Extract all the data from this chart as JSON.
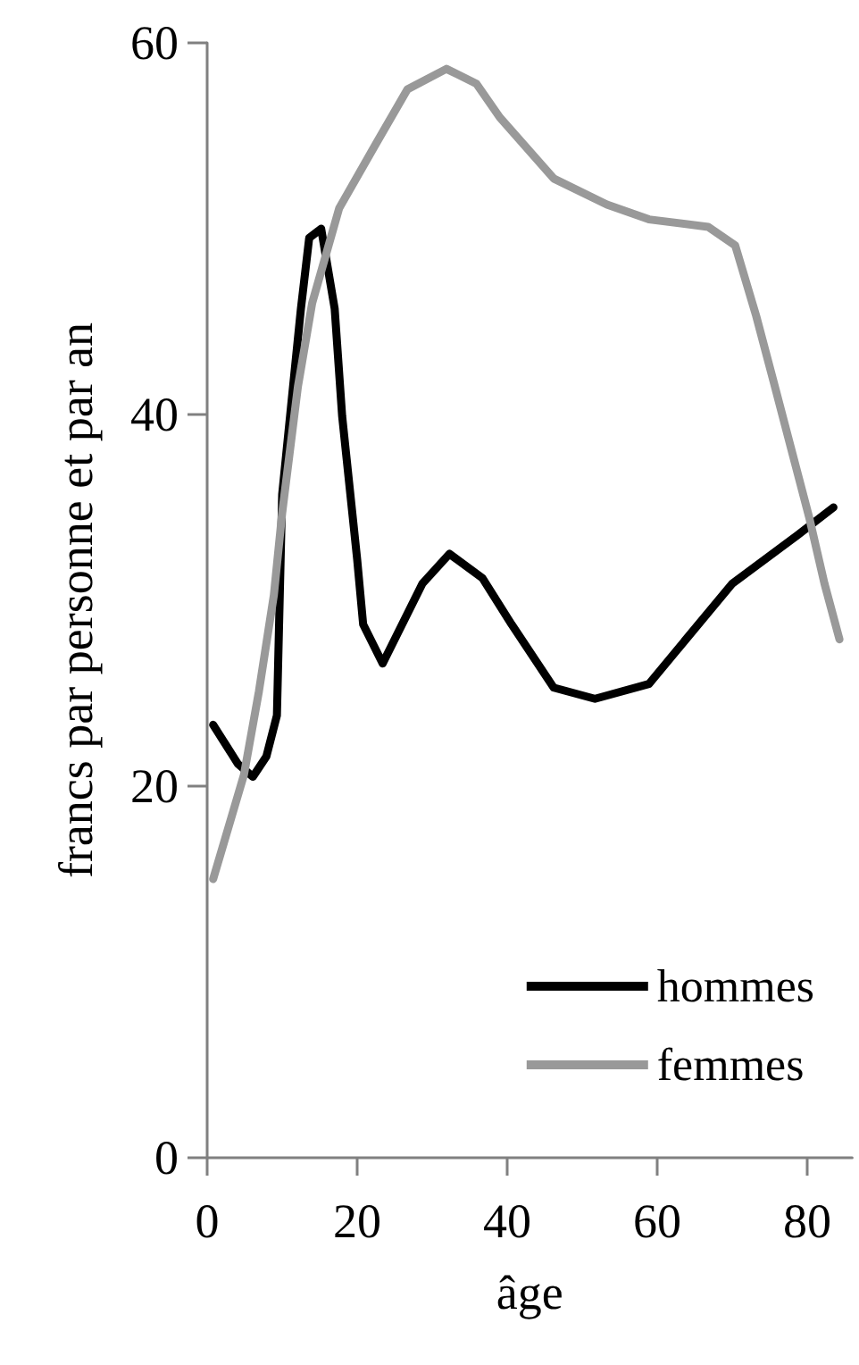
{
  "chart_data": {
    "type": "line",
    "xlabel": "âge",
    "ylabel": "francs par personne et par an",
    "xlim": [
      0,
      86
    ],
    "xticks": [
      0,
      20,
      40,
      60,
      80
    ],
    "ylim": [
      0,
      60
    ],
    "yticks": [
      0,
      20,
      40,
      60
    ],
    "grid": false,
    "legend": "bottom right",
    "marker": "none",
    "line_style": "solid",
    "series": [
      {
        "name": "hommes",
        "color": "#000000",
        "x": [
          0.8,
          4.1,
          6.1,
          7.9,
          9.3,
          10,
          12.5,
          13.6,
          15.2,
          17,
          18,
          20,
          20.8,
          23.4,
          28.7,
          32.3,
          36.7,
          40.6,
          46.2,
          51.7,
          58.9,
          70,
          78.7,
          83.5
        ],
        "values": [
          23.3,
          21.2,
          20.5,
          21.6,
          23.8,
          35.7,
          45.7,
          49.5,
          50,
          45.7,
          39.9,
          32.2,
          28.7,
          26.6,
          30.9,
          32.5,
          31.2,
          28.7,
          25.3,
          24.7,
          25.5,
          30.9,
          33.5,
          35
        ]
      },
      {
        "name": "femmes",
        "color": "#999999",
        "x": [
          0.8,
          4.9,
          6.9,
          8.9,
          10,
          12.1,
          14,
          17.6,
          22.4,
          26.7,
          31.9,
          35.9,
          39,
          46.2,
          53.3,
          58.9,
          66.8,
          70.4,
          73.2,
          75.5,
          80.3,
          82.3,
          84.3
        ],
        "values": [
          15,
          20.6,
          25.1,
          30.3,
          34.7,
          41.5,
          46,
          51.1,
          54.5,
          57.5,
          58.6,
          57.8,
          56,
          52.7,
          51.3,
          50.5,
          50.1,
          49.1,
          45.3,
          41.8,
          34.4,
          30.9,
          27.9
        ]
      }
    ]
  }
}
